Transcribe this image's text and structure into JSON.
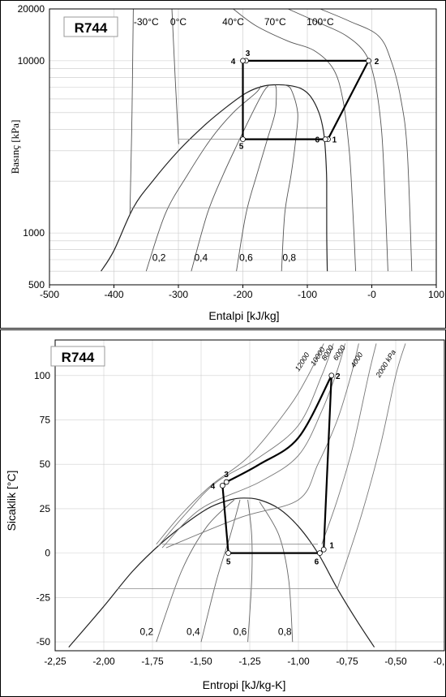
{
  "chart_data": [
    {
      "type": "line",
      "fluid": "R744",
      "xlabel": "Entalpi [kJ/kg]",
      "ylabel": "Basınç [kPa]",
      "x_scale": "linear",
      "y_scale": "log",
      "xlim": [
        -500,
        100
      ],
      "ylim": [
        500,
        20000
      ],
      "x_ticks": [
        "-500",
        "-400",
        "-300",
        "-200",
        "-100",
        "-0",
        "100"
      ],
      "y_ticks": [
        "500",
        "1000",
        "10000",
        "20000"
      ],
      "grid": true,
      "isotherm_labels": [
        "-30°C",
        "0°C",
        "40°C",
        "70°C",
        "100°C"
      ],
      "quality_labels": [
        "0,2",
        "0,4",
        "0,6",
        "0,8"
      ],
      "cycle": [
        {
          "point": "1",
          "h": -68,
          "P": 3500
        },
        {
          "point": "2",
          "h": -5,
          "P": 10000
        },
        {
          "point": "3",
          "h": -195,
          "P": 10000
        },
        {
          "point": "4",
          "h": -200,
          "P": 10000
        },
        {
          "point": "5",
          "h": -200,
          "P": 3500
        },
        {
          "point": "6",
          "h": -72,
          "P": 3500
        }
      ]
    },
    {
      "type": "line",
      "fluid": "R744",
      "xlabel": "Entropi [kJ/kg-K]",
      "ylabel": "Sicaklik [°C]",
      "xlim": [
        -2.25,
        -0.25
      ],
      "ylim": [
        -55,
        120
      ],
      "x_ticks": [
        "-2,25",
        "-2,00",
        "-1,75",
        "-1,50",
        "-1,25",
        "-1,00",
        "-0,75",
        "-0,50",
        "-0,25"
      ],
      "y_ticks": [
        "-50",
        "-25",
        "0",
        "25",
        "50",
        "75",
        "100"
      ],
      "grid": true,
      "isobar_labels": [
        "12000",
        "10000",
        "8000",
        "6000",
        "4000",
        "2000 kPa"
      ],
      "quality_labels": [
        "0,2",
        "0,4",
        "0,6",
        "0,8"
      ],
      "cycle": [
        {
          "point": "1",
          "s": -0.87,
          "T": 2
        },
        {
          "point": "2",
          "s": -0.83,
          "T": 100
        },
        {
          "point": "3",
          "s": -1.37,
          "T": 40
        },
        {
          "point": "4",
          "s": -1.39,
          "T": 38
        },
        {
          "point": "5",
          "s": -1.36,
          "T": 0
        },
        {
          "point": "6",
          "s": -0.89,
          "T": 0
        }
      ]
    }
  ]
}
